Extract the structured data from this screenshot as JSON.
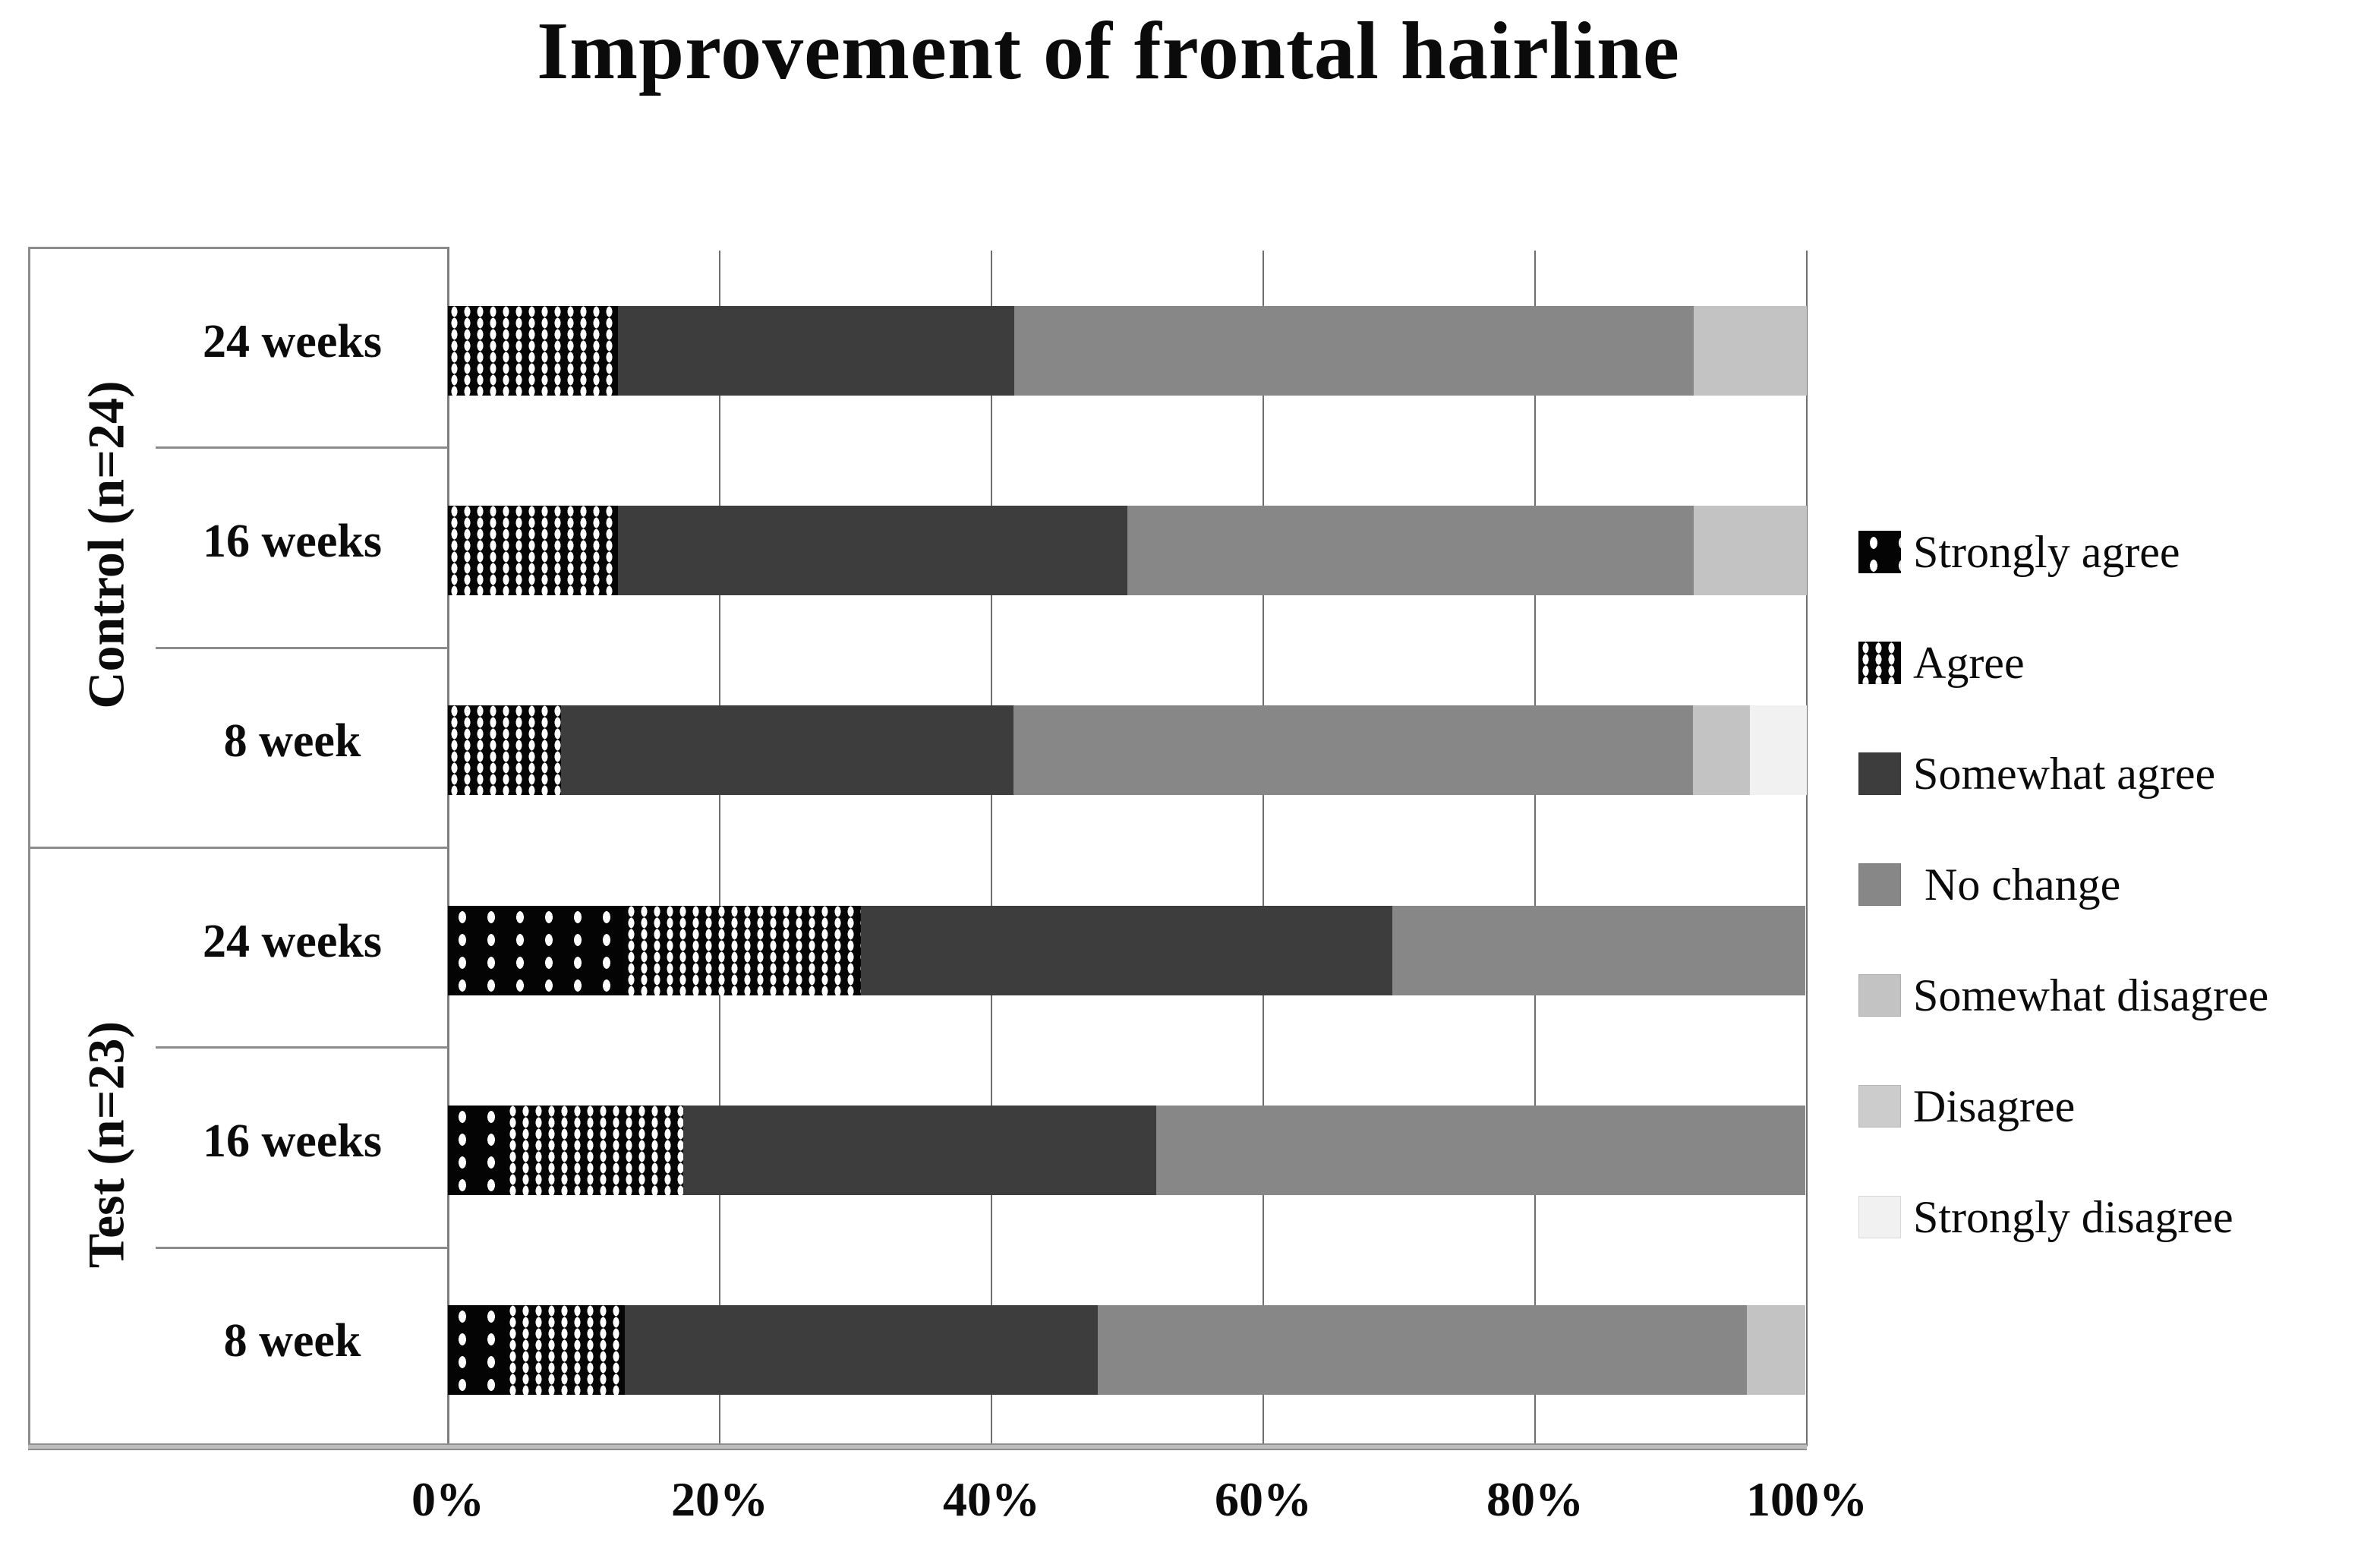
{
  "title": "Improvement of frontal hairline",
  "legend": {
    "items": [
      {
        "key": "strongly_agree",
        "label": "Strongly agree",
        "color": "#050505",
        "pattern": "black-sparse-white-dots"
      },
      {
        "key": "agree",
        "label": "Agree",
        "color": "#070707",
        "pattern": "black-dense-white-dots"
      },
      {
        "key": "somewhat_agree",
        "label": "Somewhat agree",
        "color": "#3d3d3d",
        "pattern": "solid"
      },
      {
        "key": "no_change",
        "label": " No change",
        "color": "#878787",
        "pattern": "solid"
      },
      {
        "key": "somewhat_disagree",
        "label": "Somewhat disagree",
        "color": "#c3c3c3",
        "pattern": "solid"
      },
      {
        "key": "disagree",
        "label": "Disagree",
        "color": "#cccccc",
        "pattern": "solid"
      },
      {
        "key": "strongly_disagree",
        "label": "Strongly disagree",
        "color": "#f1f1f1",
        "pattern": "solid"
      }
    ]
  },
  "x_axis": {
    "tick_labels": [
      "0%",
      "20%",
      "40%",
      "60%",
      "80%",
      "100%"
    ],
    "min": 0,
    "max": 100
  },
  "chart_data": {
    "type": "bar",
    "stacked": true,
    "orientation": "horizontal",
    "unit": "percent",
    "xlim": [
      0,
      100
    ],
    "grid": "vertical",
    "legend_position": "right",
    "series_order": [
      "strongly_agree",
      "agree",
      "somewhat_agree",
      "no_change",
      "somewhat_disagree",
      "disagree",
      "strongly_disagree"
    ],
    "groups": [
      {
        "label": "Control (n=24)",
        "rows": [
          {
            "label": "24 weeks",
            "values": [
              0,
              12.5,
              29.2,
              50.0,
              8.3,
              0,
              0
            ]
          },
          {
            "label": "16 weeks",
            "values": [
              0,
              12.5,
              37.5,
              41.7,
              8.3,
              0,
              0
            ]
          },
          {
            "label": "8 week",
            "values": [
              0,
              8.3,
              33.3,
              50.0,
              4.2,
              0,
              4.2
            ]
          }
        ]
      },
      {
        "label": "Test (n=23)",
        "rows": [
          {
            "label": "24 weeks",
            "values": [
              13.0,
              17.4,
              39.1,
              30.4,
              0,
              0,
              0
            ]
          },
          {
            "label": "16 weeks",
            "values": [
              4.3,
              13.0,
              34.8,
              47.8,
              0,
              0,
              0
            ]
          },
          {
            "label": "8 week",
            "values": [
              4.3,
              8.7,
              34.8,
              47.8,
              4.3,
              0,
              0
            ]
          }
        ]
      }
    ]
  }
}
